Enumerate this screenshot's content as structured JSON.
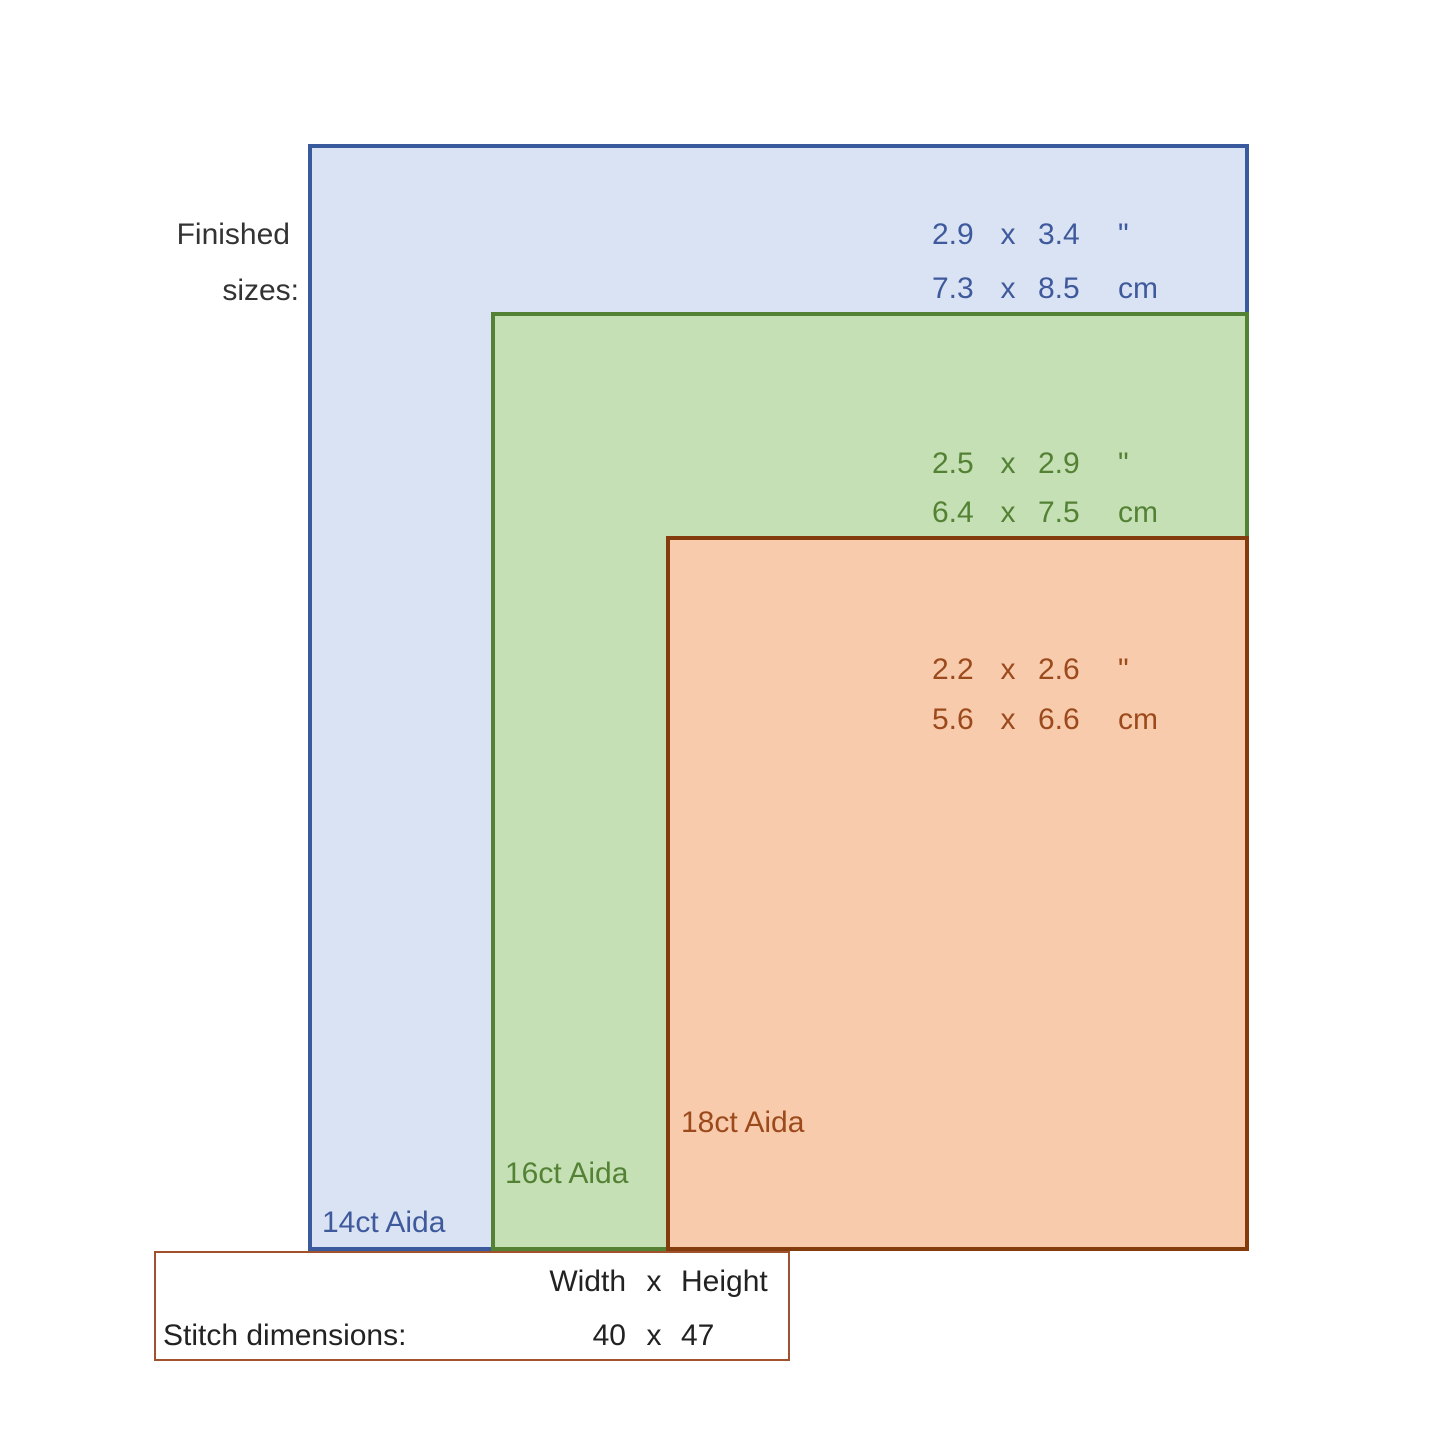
{
  "finished_label": [
    "Finished",
    "sizes:"
  ],
  "fabrics": [
    {
      "label": "14ct Aida",
      "inches": [
        "2.9",
        "x",
        "3.4",
        "\""
      ],
      "cm": [
        "7.3",
        "x",
        "8.5",
        "cm"
      ]
    },
    {
      "label": "16ct Aida",
      "inches": [
        "2.5",
        "x",
        "2.9",
        "\""
      ],
      "cm": [
        "6.4",
        "x",
        "7.5",
        "cm"
      ]
    },
    {
      "label": "18ct Aida",
      "inches": [
        "2.2",
        "x",
        "2.6",
        "\""
      ],
      "cm": [
        "5.6",
        "x",
        "6.6",
        "cm"
      ]
    }
  ],
  "stitch": {
    "header": [
      "Width",
      "x",
      "Height"
    ],
    "label": "Stitch dimensions:",
    "values": [
      "40",
      "x",
      "47"
    ]
  }
}
